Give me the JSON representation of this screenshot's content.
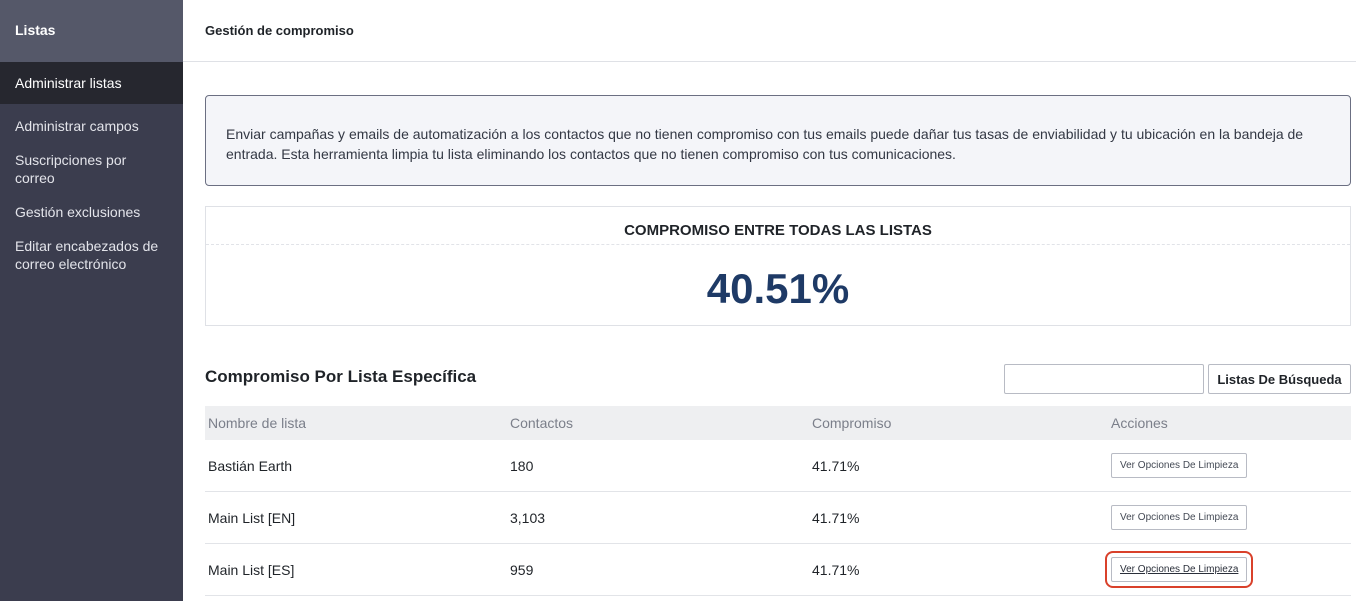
{
  "sidebar": {
    "header": "Listas",
    "items": [
      {
        "label": "Administrar listas"
      },
      {
        "label": "Administrar campos"
      },
      {
        "label": "Suscripciones por correo"
      },
      {
        "label": "Gestión exclusiones"
      },
      {
        "label": "Editar encabezados de correo electrónico"
      }
    ]
  },
  "topbar": {
    "title": "Gestión de compromiso"
  },
  "info": {
    "text": "Enviar campañas y emails de automatización a los contactos que no tienen compromiso con tus emails puede dañar tus tasas de enviabilidad y tu ubicación en la bandeja de entrada. Esta herramienta limpia tu lista eliminando los contactos que no tienen compromiso con tus comunicaciones."
  },
  "overall": {
    "title": "COMPROMISO ENTRE TODAS LAS LISTAS",
    "value": "40.51%"
  },
  "section": {
    "title": "Compromiso Por Lista Específica",
    "search_placeholder": "",
    "search_button": "Listas De Búsqueda"
  },
  "table": {
    "headers": [
      "Nombre de lista",
      "Contactos",
      "Compromiso",
      "Acciones"
    ],
    "rows": [
      {
        "name": "Bastián Earth",
        "contacts": "180",
        "engagement": "41.71%",
        "action": "Ver Opciones De Limpieza"
      },
      {
        "name": "Main List [EN]",
        "contacts": "3,103",
        "engagement": "41.71%",
        "action": "Ver Opciones De Limpieza"
      },
      {
        "name": "Main List [ES]",
        "contacts": "959",
        "engagement": "41.71%",
        "action": "Ver Opciones De Limpieza"
      }
    ]
  },
  "colors": {
    "sidebar_bg": "#3b3d4e",
    "sidebar_header_bg": "#555869",
    "active_item_bg": "#26272f",
    "percent_color": "#1e3a66",
    "highlight_outline": "#d9412b"
  }
}
